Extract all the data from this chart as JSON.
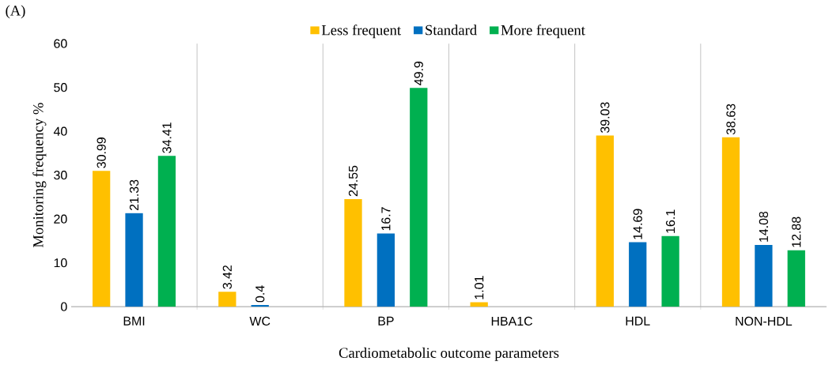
{
  "chart_data": {
    "type": "bar",
    "xlabel": "Cardiometabolic outcome parameters",
    "ylabel": "Monitoring frequency  %",
    "annotations": [
      "(A)"
    ],
    "categories": [
      "BMI",
      "WC",
      "BP",
      "HBA1C",
      "HDL",
      "NON-HDL"
    ],
    "series": [
      {
        "name": "Less frequent",
        "color": "#ffc000",
        "values": [
          30.99,
          3.42,
          24.55,
          1.01,
          39.03,
          38.63
        ]
      },
      {
        "name": "Standard",
        "color": "#0070c0",
        "values": [
          21.33,
          0.4,
          16.7,
          null,
          14.69,
          14.08
        ]
      },
      {
        "name": "More frequent",
        "color": "#00b050",
        "values": [
          34.41,
          null,
          49.9,
          null,
          16.1,
          12.88
        ]
      }
    ],
    "ylim": [
      0,
      60
    ],
    "yticks": [
      0,
      10,
      20,
      30,
      40,
      50,
      60
    ],
    "grid": "x",
    "legend": "top",
    "data_labels": true
  }
}
